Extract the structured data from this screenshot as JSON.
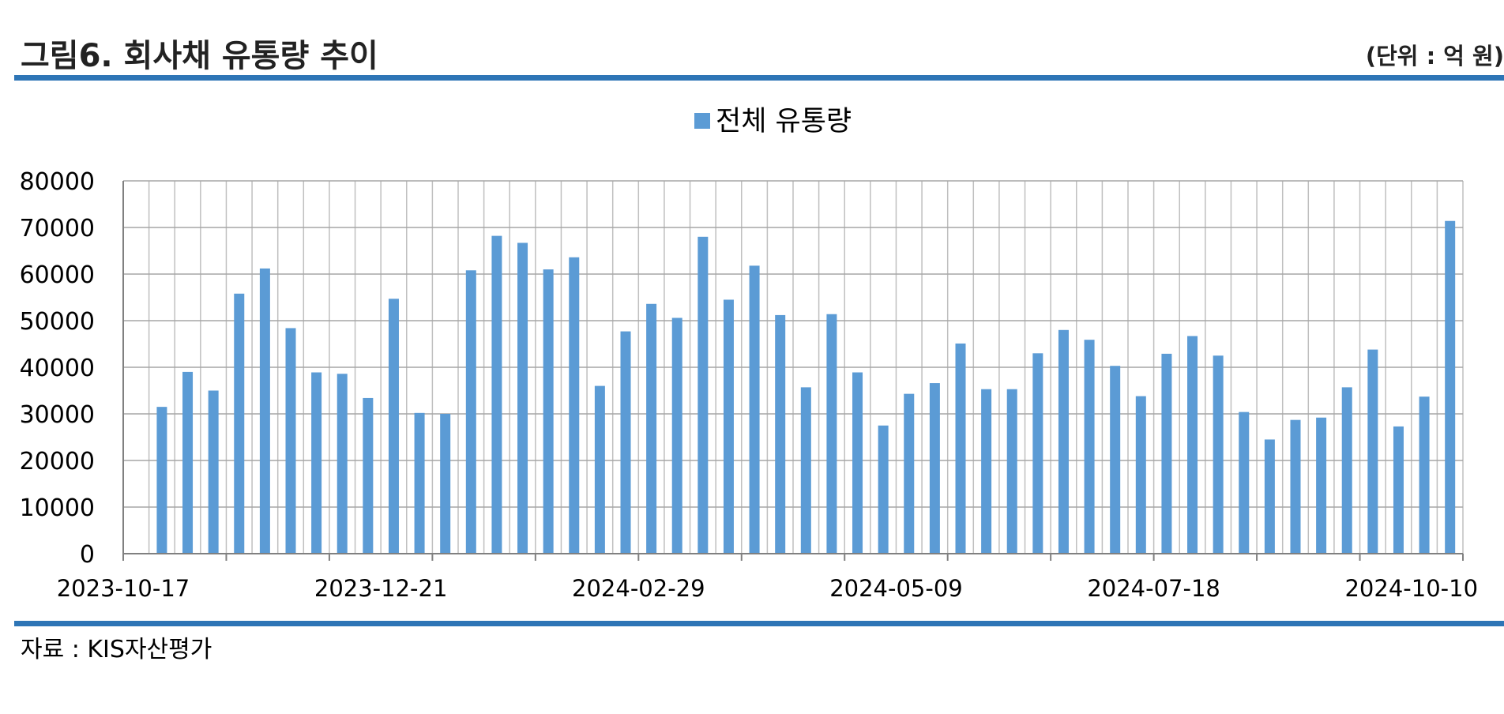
{
  "header": {
    "title": "그림6. 회사채 유통량 추이",
    "unit": "(단위 : 억 원)"
  },
  "source": "자료 : KIS자산평가",
  "colors": {
    "accent": "#2e75b6",
    "bar": "#5b9bd5",
    "grid": "#bfbfbf",
    "axis": "#808080"
  },
  "chart_data": {
    "type": "bar",
    "legend": [
      "전체 유통량"
    ],
    "legend_position": "top-center",
    "grid": true,
    "ylim": [
      0,
      80000
    ],
    "yticks": [
      0,
      10000,
      20000,
      30000,
      40000,
      50000,
      60000,
      70000,
      80000
    ],
    "x_tick_labels": [
      "2023-10-17",
      "2023-12-21",
      "2024-02-29",
      "2024-05-09",
      "2024-07-18",
      "2024-10-10"
    ],
    "series": [
      {
        "name": "전체 유통량",
        "values": [
          31500,
          39000,
          35000,
          55800,
          61200,
          48400,
          38900,
          38600,
          33400,
          54700,
          30200,
          30000,
          60800,
          68200,
          66700,
          61000,
          63600,
          36000,
          47700,
          53600,
          50600,
          68000,
          54500,
          61800,
          51200,
          35700,
          51400,
          38900,
          27500,
          34300,
          36600,
          45100,
          35300,
          35300,
          43000,
          48000,
          45900,
          40300,
          33800,
          42900,
          46700,
          42500,
          30400,
          24500,
          28700,
          29200,
          35700,
          43800,
          27300,
          33700,
          71400
        ]
      }
    ]
  }
}
